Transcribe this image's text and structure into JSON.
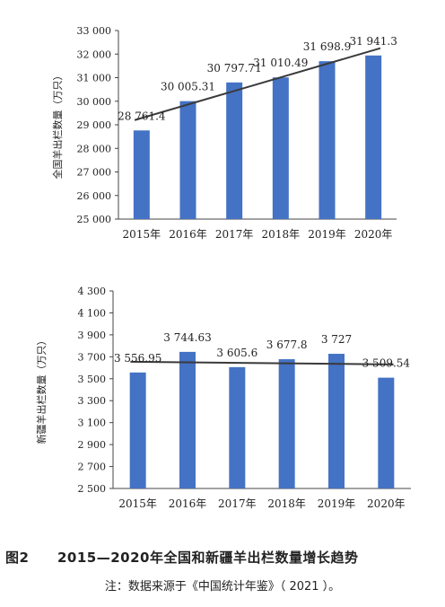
{
  "chart_data": [
    {
      "type": "bar",
      "categories": [
        "2015年",
        "2016年",
        "2017年",
        "2018年",
        "2019年",
        "2020年"
      ],
      "values": [
        28761.4,
        30005.31,
        30797.71,
        31010.49,
        31698.9,
        31941.3
      ],
      "data_labels": [
        "28 761.4",
        "30 005.31",
        "30 797.71",
        "31 010.49",
        "31 698.9",
        "31 941.3"
      ],
      "ylabel": "全国羊出栏数量（万只）",
      "ylim": [
        25000,
        33000
      ],
      "yticks": [
        25000,
        26000,
        27000,
        28000,
        29000,
        30000,
        31000,
        32000,
        33000
      ],
      "ytick_labels": [
        "25 000",
        "26 000",
        "27 000",
        "28 000",
        "29 000",
        "30 000",
        "31 000",
        "32 000",
        "33 000"
      ],
      "trendline": [
        29200,
        32250
      ],
      "bar_color": "#4472C4",
      "grid": false
    },
    {
      "type": "bar",
      "categories": [
        "2015年",
        "2016年",
        "2017年",
        "2018年",
        "2019年",
        "2020年"
      ],
      "values": [
        3556.95,
        3744.63,
        3605.6,
        3677.8,
        3727,
        3509.54
      ],
      "data_labels": [
        "3 556.95",
        "3 744.63",
        "3 605.6",
        "3 677.8",
        "3 727",
        "3 509.54"
      ],
      "ylabel": "新疆羊出栏数量（万只）",
      "ylim": [
        2500,
        4300
      ],
      "yticks": [
        2500,
        2700,
        2900,
        3100,
        3300,
        3500,
        3700,
        3900,
        4100,
        4300
      ],
      "ytick_labels": [
        "2 500",
        "2 700",
        "2 900",
        "3 100",
        "3 300",
        "3 500",
        "3 700",
        "3 900",
        "4 100",
        "4 300"
      ],
      "trendline": [
        3655,
        3630
      ],
      "bar_color": "#4472C4",
      "grid": false
    }
  ],
  "caption": {
    "label": "图2",
    "title": "2015—2020年全国和新疆羊出栏数量增长趋势"
  },
  "note": "注：数据来源于《中国统计年鉴》（ 2021 ）。"
}
